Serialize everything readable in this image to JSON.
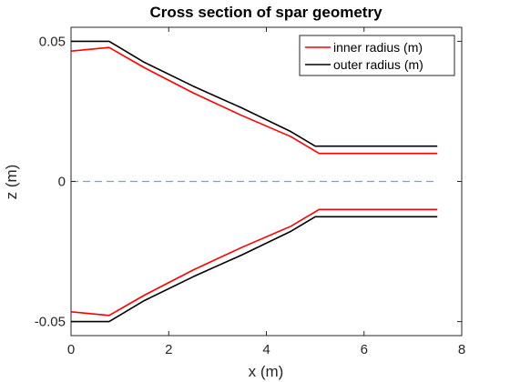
{
  "chart_data": {
    "type": "line",
    "title": "Cross section of spar geometry",
    "xlabel": "x (m)",
    "ylabel": "z (m)",
    "xlim": [
      0,
      8
    ],
    "ylim": [
      -0.055,
      0.055
    ],
    "xticks": [
      0,
      2,
      4,
      6,
      8
    ],
    "xtick_labels": [
      "0",
      "2",
      "4",
      "6",
      "8"
    ],
    "yticks": [
      -0.05,
      0,
      0.05
    ],
    "ytick_labels": [
      "-0.05",
      "0",
      "0.05"
    ],
    "grid": false,
    "legend_position": "top-right",
    "series": [
      {
        "name": "inner radius (m)",
        "color": "#ff0000",
        "upper": {
          "x": [
            0,
            0.78,
            1.5,
            2.5,
            3.5,
            4.5,
            5.08,
            7.5
          ],
          "y": [
            0.0465,
            0.0478,
            0.0406,
            0.0316,
            0.0235,
            0.016,
            0.01,
            0.01
          ]
        },
        "lower": {
          "x": [
            0,
            0.78,
            1.5,
            2.5,
            3.5,
            4.5,
            5.08,
            7.5
          ],
          "y": [
            -0.0465,
            -0.0478,
            -0.0406,
            -0.0316,
            -0.0235,
            -0.016,
            -0.01,
            -0.01
          ]
        }
      },
      {
        "name": "outer radius (m)",
        "color": "#000000",
        "upper": {
          "x": [
            0,
            0.78,
            1.5,
            2.5,
            3.5,
            4.5,
            5.0,
            7.5
          ],
          "y": [
            0.05,
            0.05,
            0.0425,
            0.034,
            0.0262,
            0.0178,
            0.0126,
            0.0126
          ]
        },
        "lower": {
          "x": [
            0,
            0.78,
            1.5,
            2.5,
            3.5,
            4.5,
            5.0,
            7.5
          ],
          "y": [
            -0.05,
            -0.05,
            -0.0425,
            -0.034,
            -0.0262,
            -0.0178,
            -0.0126,
            -0.0126
          ]
        }
      }
    ],
    "reference_line": {
      "y": 0,
      "style": "dashed",
      "color": "#6fa8c8"
    }
  }
}
